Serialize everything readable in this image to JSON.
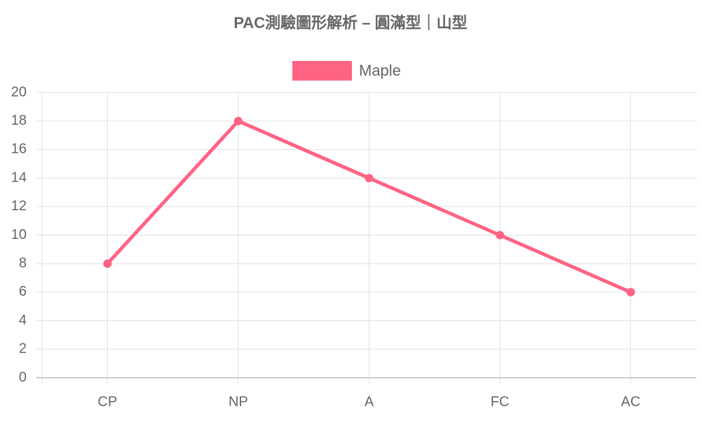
{
  "chart_data": {
    "type": "line",
    "title": "PAC測驗圖形解析 – 圓滿型｜山型",
    "categories": [
      "CP",
      "NP",
      "A",
      "FC",
      "AC"
    ],
    "series": [
      {
        "name": "Maple",
        "color": "#ff6384",
        "values": [
          8,
          18,
          14,
          10,
          6
        ]
      }
    ],
    "ylim": [
      0,
      20
    ],
    "yticks": [
      0,
      2,
      4,
      6,
      8,
      10,
      12,
      14,
      16,
      18,
      20
    ],
    "grid": true,
    "legend": "top"
  }
}
